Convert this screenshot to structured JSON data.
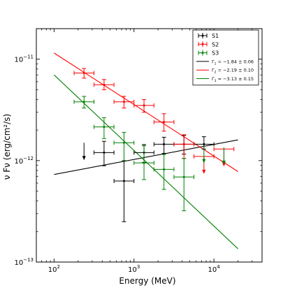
{
  "chart_data": {
    "type": "scatter",
    "xlabel": "Energy (MeV)",
    "ylabel": "ν Fν (erg/cm²/s)",
    "xscale": "log",
    "yscale": "log",
    "xlim": [
      60,
      40000
    ],
    "ylim": [
      1e-13,
      2e-11
    ],
    "x_ticks": [
      {
        "value": 100,
        "base": "10",
        "exp": "2"
      },
      {
        "value": 1000,
        "base": "10",
        "exp": "3"
      },
      {
        "value": 10000,
        "base": "10",
        "exp": "4"
      }
    ],
    "y_ticks": [
      {
        "value": 1e-13,
        "base": "10",
        "exp": "−13"
      },
      {
        "value": 1e-12,
        "base": "10",
        "exp": "−12"
      },
      {
        "value": 1e-11,
        "base": "10",
        "exp": "−11"
      }
    ],
    "grid": false,
    "legend_position": "top-right",
    "legend": [
      {
        "label": "S1",
        "kind": "errorbar",
        "color": "#000000"
      },
      {
        "label": "S2",
        "kind": "errorbar",
        "color": "#ff0000"
      },
      {
        "label": "S3",
        "kind": "errorbar",
        "color": "#008000"
      },
      {
        "sym": "Γ",
        "sub": "1",
        "rest": " = −1.84 ± 0.06",
        "kind": "line",
        "color": "#000000"
      },
      {
        "sym": "Γ",
        "sub": "2",
        "rest": " = −2.19 ± 0.10",
        "kind": "line",
        "color": "#ff0000"
      },
      {
        "sym": "Γ",
        "sub": "3",
        "rest": " = −3.13 ± 0.15",
        "kind": "line",
        "color": "#008000"
      }
    ],
    "series": [
      {
        "name": "S1",
        "color": "#000000",
        "points": [
          {
            "x": 422,
            "xlo": 316,
            "xhi": 562,
            "y": 1.2e-12,
            "ylo": 8.9e-13,
            "yhi": 1.55e-12
          },
          {
            "x": 750,
            "xlo": 562,
            "xhi": 1000,
            "y": 6.3e-13,
            "ylo": 2.5e-13,
            "yhi": 1e-12
          },
          {
            "x": 1334,
            "xlo": 1000,
            "xhi": 1778,
            "y": 1.2e-12,
            "ylo": 9.6e-13,
            "yhi": 1.44e-12
          },
          {
            "x": 2371,
            "xlo": 1778,
            "xhi": 3162,
            "y": 1.45e-12,
            "ylo": 1.18e-12,
            "yhi": 1.7e-12
          },
          {
            "x": 4217,
            "xlo": 3162,
            "xhi": 5623,
            "y": 1.45e-12,
            "ylo": 1.16e-12,
            "yhi": 1.77e-12
          },
          {
            "x": 7499,
            "xlo": 5623,
            "xhi": 10000,
            "y": 1.45e-12,
            "ylo": 1.3e-12,
            "yhi": 1.72e-12
          }
        ],
        "upper_limits": [
          {
            "x": 237,
            "y": 1.5e-12
          }
        ]
      },
      {
        "name": "S2",
        "color": "#ff0000",
        "points": [
          {
            "x": 237,
            "xlo": 178,
            "xhi": 316,
            "y": 7.3e-12,
            "ylo": 6.5e-12,
            "yhi": 8.1e-12
          },
          {
            "x": 422,
            "xlo": 316,
            "xhi": 562,
            "y": 5.6e-12,
            "ylo": 5e-12,
            "yhi": 6.3e-12
          },
          {
            "x": 750,
            "xlo": 562,
            "xhi": 1000,
            "y": 3.8e-12,
            "ylo": 3.3e-12,
            "yhi": 4.3e-12
          },
          {
            "x": 1334,
            "xlo": 1000,
            "xhi": 1778,
            "y": 3.5e-12,
            "ylo": 3e-12,
            "yhi": 4e-12
          },
          {
            "x": 2371,
            "xlo": 1778,
            "xhi": 3162,
            "y": 2.4e-12,
            "ylo": 1.95e-12,
            "yhi": 2.9e-12
          },
          {
            "x": 4217,
            "xlo": 3162,
            "xhi": 5623,
            "y": 1.45e-12,
            "ylo": 1.05e-12,
            "yhi": 1.8e-12
          }
        ],
        "upper_limits": [
          {
            "x": 7499,
            "y": 1.1e-12,
            "xlo": 5623,
            "xhi": 10000
          },
          {
            "x": 13335,
            "y": 1.3e-12,
            "xlo": 10000,
            "xhi": 17783
          }
        ]
      },
      {
        "name": "S3",
        "color": "#008000",
        "points": [
          {
            "x": 237,
            "xlo": 178,
            "xhi": 316,
            "y": 3.8e-12,
            "ylo": 3.3e-12,
            "yhi": 4.3e-12
          },
          {
            "x": 422,
            "xlo": 316,
            "xhi": 562,
            "y": 2.15e-12,
            "ylo": 1.65e-12,
            "yhi": 2.65e-12
          },
          {
            "x": 750,
            "xlo": 562,
            "xhi": 1000,
            "y": 1.5e-12,
            "ylo": 1e-12,
            "yhi": 1.9e-12
          },
          {
            "x": 1334,
            "xlo": 1000,
            "xhi": 1778,
            "y": 9.5e-13,
            "ylo": 6.5e-13,
            "yhi": 1.4e-12
          },
          {
            "x": 2371,
            "xlo": 1778,
            "xhi": 3162,
            "y": 8.2e-13,
            "ylo": 5.2e-13,
            "yhi": 1.15e-12
          },
          {
            "x": 4217,
            "xlo": 3162,
            "xhi": 5623,
            "y": 6.9e-13,
            "ylo": 3.2e-13,
            "yhi": 1.05e-12
          }
        ],
        "upper_limits": [
          {
            "x": 7499,
            "y": 1.4e-12
          },
          {
            "x": 13335,
            "y": 1.35e-12
          }
        ]
      }
    ],
    "fit_lines": [
      {
        "name": "Γ1",
        "color": "#000000",
        "x": [
          100,
          20000
        ],
        "y": [
          7.3e-13,
          1.6e-12
        ]
      },
      {
        "name": "Γ2",
        "color": "#ff0000",
        "x": [
          100,
          20000
        ],
        "y": [
          1.15e-11,
          7.8e-13
        ]
      },
      {
        "name": "Γ3",
        "color": "#008000",
        "x": [
          100,
          20000
        ],
        "y": [
          7e-12,
          1.35e-13
        ]
      }
    ]
  }
}
